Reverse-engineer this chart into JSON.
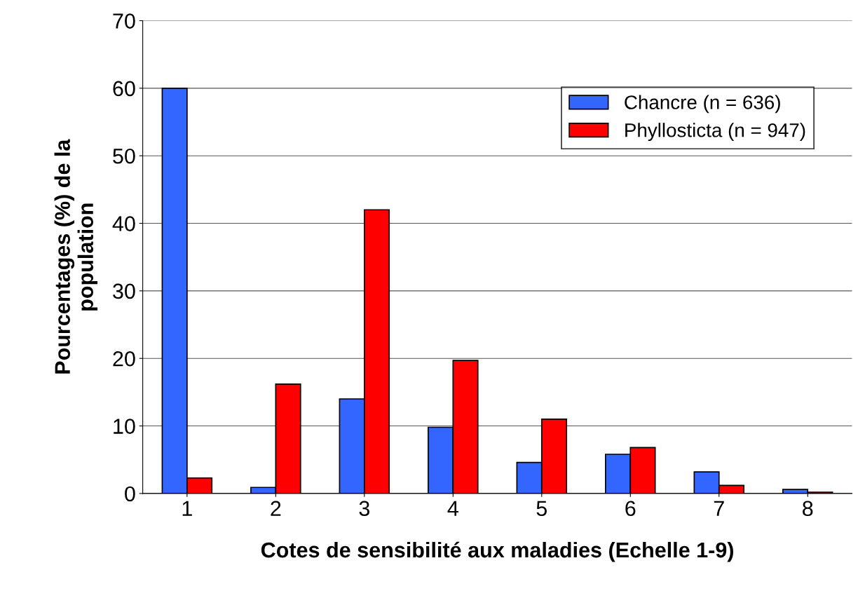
{
  "chart_data": {
    "type": "bar",
    "xlabel": "Cotes de sensibilité aux maladies (Echelle 1-9)",
    "ylabel": "Pourcentages (%) de la\npopulation",
    "categories": [
      "1",
      "2",
      "3",
      "4",
      "5",
      "6",
      "7",
      "8"
    ],
    "series": [
      {
        "name": "Chancre (n = 636)",
        "color": "#3366ff",
        "values": [
          60,
          0.9,
          14,
          9.8,
          4.6,
          5.8,
          3.2,
          0.6
        ]
      },
      {
        "name": "Phyllosticta (n = 947)",
        "color": "#ff0000",
        "values": [
          2.3,
          16.2,
          42,
          19.7,
          11,
          6.8,
          1.2,
          0.2
        ]
      }
    ],
    "ylim": [
      0,
      70
    ],
    "yticks": [
      0,
      10,
      20,
      30,
      40,
      50,
      60,
      70
    ],
    "grid": "y",
    "legend": "top right"
  }
}
